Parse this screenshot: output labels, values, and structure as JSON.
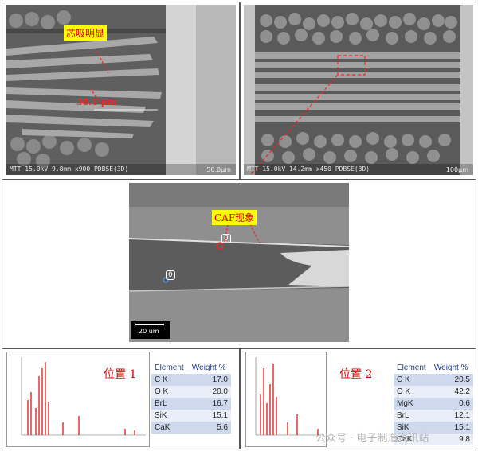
{
  "sem_top_left": {
    "label_core": "芯吸明显",
    "measure": "38.1 μm",
    "footer": "MTT 15.0kV 9.8mm x900 PDBSE(3D)",
    "scale": "50.0μm"
  },
  "sem_top_right": {
    "footer": "MTT 15.0kV 14.2mm x450 PDBSE(3D)",
    "scale": "100μm"
  },
  "sem_middle": {
    "label_caf": "CAF现象",
    "marker_0a": "0",
    "marker_0b": "0",
    "scale": "20 um"
  },
  "eds_left": {
    "position_label": "位置 1",
    "headers": [
      "Element",
      "Weight %"
    ],
    "rows": [
      {
        "element": "C K",
        "weight": "17.0"
      },
      {
        "element": "O K",
        "weight": "20.0"
      },
      {
        "element": "BrL",
        "weight": "16.7"
      },
      {
        "element": "SiK",
        "weight": "15.1"
      },
      {
        "element": "CaK",
        "weight": "5.6"
      }
    ]
  },
  "eds_right": {
    "position_label": "位置 2",
    "headers": [
      "Element",
      "Weight %"
    ],
    "rows": [
      {
        "element": "C K",
        "weight": "20.5"
      },
      {
        "element": "O K",
        "weight": "42.2"
      },
      {
        "element": "MgK",
        "weight": "0.6"
      },
      {
        "element": "BrL",
        "weight": "12.1"
      },
      {
        "element": "SiK",
        "weight": "15.1"
      },
      {
        "element": "CaK",
        "weight": "9.8"
      }
    ]
  },
  "watermark": "公众号 · 电子制造资讯站",
  "colors": {
    "label_bg": "#ffff00",
    "label_text": "#e00000",
    "table_header": "#1e3a78"
  }
}
